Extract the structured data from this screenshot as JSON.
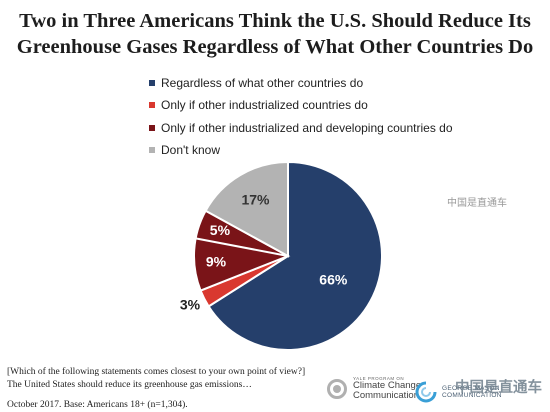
{
  "title": {
    "line1": "Two in Three Americans Think the U.S. Should Reduce Its",
    "line2": "Greenhouse Gases Regardless of What Other Countries Do"
  },
  "legend": [
    {
      "label": "Regardless of what other countries do",
      "color": "#253f6b"
    },
    {
      "label": "Only if other industrialized countries do",
      "color": "#d9382f"
    },
    {
      "label": "Only if other industrialized and developing countries do",
      "color": "#7a1418"
    },
    {
      "label": "Don't know",
      "color": "#b3b3b3"
    }
  ],
  "chart_data": {
    "type": "pie",
    "slices": [
      {
        "name": "Regardless of what other countries do",
        "value": 66,
        "label": "66%",
        "color": "#253f6b"
      },
      {
        "name": "Only if other industrialized countries do",
        "value": 3,
        "label": "3%",
        "color": "#d9382f"
      },
      {
        "name": "Only if other industrialized and developing countries do",
        "value": 14,
        "label_a": "9%",
        "label_b": "5%",
        "color": "#7a1418",
        "sub_values": [
          9,
          5
        ]
      },
      {
        "name": "Don't know",
        "value": 17,
        "label": "17%",
        "color": "#b3b3b3"
      }
    ],
    "legend_position": "top-left"
  },
  "footnote": {
    "line1": "[Which of the following statements comes closest to your own point of view?]",
    "line2": "The United States should reduce its greenhouse gas emissions…",
    "line3": "October 2017. Base: Americans 18+ (n=1,304)."
  },
  "logos": {
    "ycc_small": "YALE PROGRAM ON",
    "ycc_line1": "Climate Change",
    "ycc_line2": "Communication",
    "gmu_line1": "GEORGE MASON",
    "gmu_line2": "COMMUNICATION"
  },
  "watermarks": {
    "mid": "中国是直通车",
    "bottom": "中国是直通车"
  }
}
